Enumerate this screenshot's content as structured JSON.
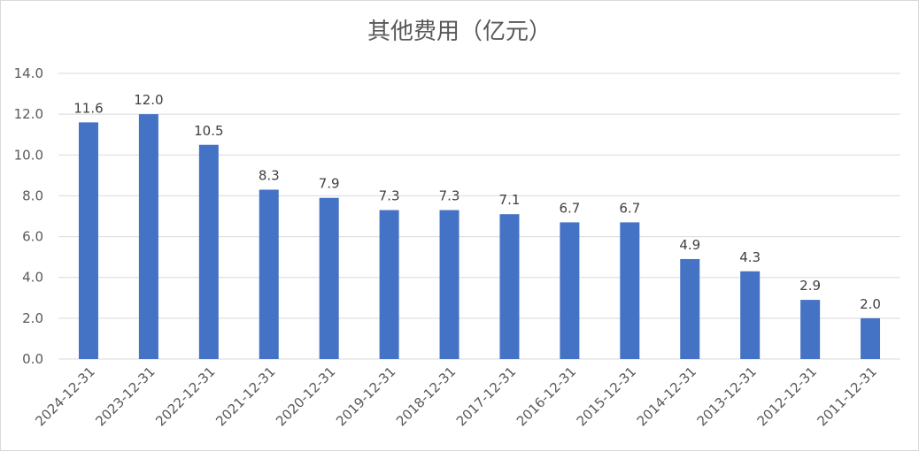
{
  "chart_data": {
    "type": "bar",
    "title": "其他费用（亿元）",
    "xlabel": "",
    "ylabel": "",
    "categories": [
      "2024-12-31",
      "2023-12-31",
      "2022-12-31",
      "2021-12-31",
      "2020-12-31",
      "2019-12-31",
      "2018-12-31",
      "2017-12-31",
      "2016-12-31",
      "2015-12-31",
      "2014-12-31",
      "2013-12-31",
      "2012-12-31",
      "2011-12-31"
    ],
    "values": [
      11.6,
      12.0,
      10.5,
      8.3,
      7.9,
      7.3,
      7.3,
      7.1,
      6.7,
      6.7,
      4.9,
      4.3,
      2.9,
      2.0
    ],
    "data_labels": [
      "11.6",
      "12.0",
      "10.5",
      "8.3",
      "7.9",
      "7.3",
      "7.3",
      "7.1",
      "6.7",
      "6.7",
      "4.9",
      "4.3",
      "2.9",
      "2.0"
    ],
    "ylim": [
      0,
      14
    ],
    "yticks": [
      "0.0",
      "2.0",
      "4.0",
      "6.0",
      "8.0",
      "10.0",
      "12.0",
      "14.0"
    ],
    "grid": true,
    "legend": "none",
    "bar_color": "#4472c4",
    "grid_color": "#d9d9d9"
  }
}
